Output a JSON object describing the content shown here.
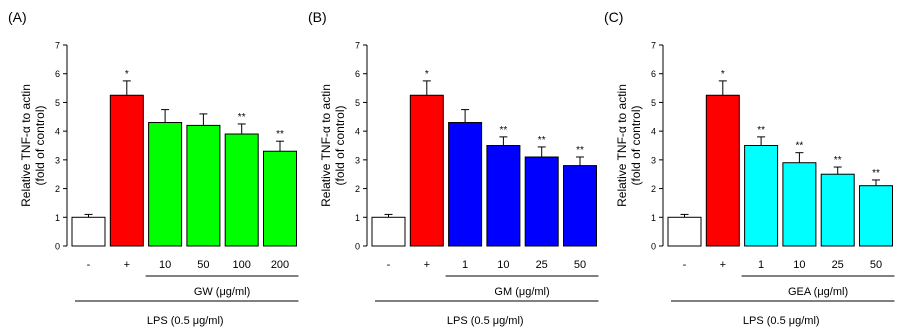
{
  "chart_data": [
    {
      "type": "bar",
      "panel": "(A)",
      "ylabel": [
        "Relative TNF-α to actin",
        "(fold of control)"
      ],
      "categories": [
        "-",
        "+",
        "10",
        "50",
        "100",
        "200"
      ],
      "values": [
        1.0,
        5.25,
        4.3,
        4.2,
        3.9,
        3.3
      ],
      "errors": [
        0.1,
        0.5,
        0.45,
        0.4,
        0.35,
        0.35
      ],
      "colors": [
        "#ffffff",
        "#ff0000",
        "#00ff00",
        "#00ff00",
        "#00ff00",
        "#00ff00"
      ],
      "annotations": [
        null,
        "*",
        null,
        null,
        "**",
        "**"
      ],
      "group_label": "GW (μg/ml)",
      "outer_label": "LPS (0.5 μg/ml)",
      "ylim": [
        0,
        7
      ],
      "yticks": [
        0,
        1,
        2,
        3,
        4,
        5,
        6,
        7
      ]
    },
    {
      "type": "bar",
      "panel": "(B)",
      "ylabel": [
        "Relative TNF-α to actin",
        "(fold of control)"
      ],
      "categories": [
        "-",
        "+",
        "1",
        "10",
        "25",
        "50"
      ],
      "values": [
        1.0,
        5.25,
        4.3,
        3.5,
        3.1,
        2.8
      ],
      "errors": [
        0.1,
        0.5,
        0.45,
        0.3,
        0.35,
        0.3
      ],
      "colors": [
        "#ffffff",
        "#ff0000",
        "#0000ff",
        "#0000ff",
        "#0000ff",
        "#0000ff"
      ],
      "annotations": [
        null,
        "*",
        null,
        "**",
        "**",
        "**"
      ],
      "group_label": "GM (μg/ml)",
      "outer_label": "LPS (0.5 μg/ml)",
      "ylim": [
        0,
        7
      ],
      "yticks": [
        0,
        1,
        2,
        3,
        4,
        5,
        6,
        7
      ]
    },
    {
      "type": "bar",
      "panel": "(C)",
      "ylabel": [
        "Relative TNF-α to actin",
        "(fold of control)"
      ],
      "categories": [
        "-",
        "+",
        "1",
        "10",
        "25",
        "50"
      ],
      "values": [
        1.0,
        5.25,
        3.5,
        2.9,
        2.5,
        2.1
      ],
      "errors": [
        0.1,
        0.5,
        0.3,
        0.35,
        0.25,
        0.2
      ],
      "colors": [
        "#ffffff",
        "#ff0000",
        "#00ffff",
        "#00ffff",
        "#00ffff",
        "#00ffff"
      ],
      "annotations": [
        null,
        "*",
        "**",
        "**",
        "**",
        "**"
      ],
      "group_label": "GEA (μg/ml)",
      "outer_label": "LPS (0.5 μg/ml)",
      "ylim": [
        0,
        7
      ],
      "yticks": [
        0,
        1,
        2,
        3,
        4,
        5,
        6,
        7
      ]
    }
  ]
}
